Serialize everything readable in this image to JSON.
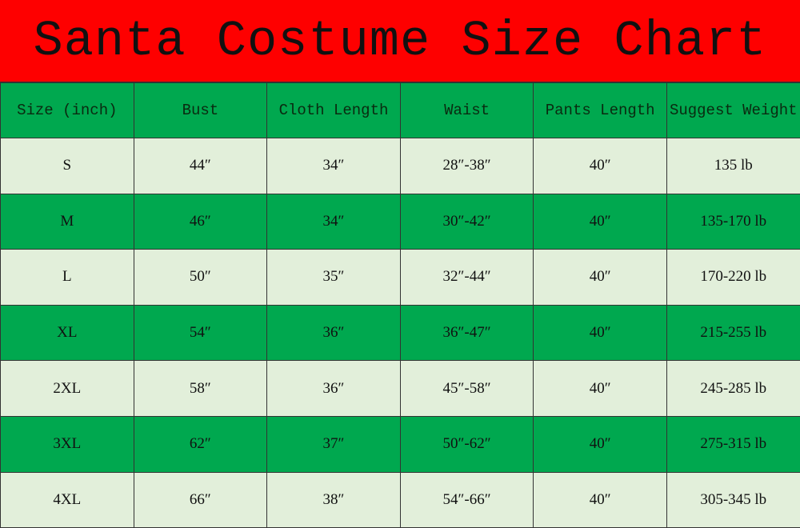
{
  "title": "Santa Costume Size Chart",
  "colors": {
    "title_bg": "#fe0000",
    "green": "#00a84f",
    "light": "#e2efda"
  },
  "table": {
    "headers": [
      "Size (inch)",
      "Bust",
      "Cloth Length",
      "Waist",
      "Pants Length",
      "Suggest Weight"
    ],
    "rows": [
      [
        "S",
        "44″",
        "34″",
        "28″-38″",
        "40″",
        "135 lb"
      ],
      [
        "M",
        "46″",
        "34″",
        "30″-42″",
        "40″",
        "135-170 lb"
      ],
      [
        "L",
        "50″",
        "35″",
        "32″-44″",
        "40″",
        "170-220 lb"
      ],
      [
        "XL",
        "54″",
        "36″",
        "36″-47″",
        "40″",
        "215-255 lb"
      ],
      [
        "2XL",
        "58″",
        "36″",
        "45″-58″",
        "40″",
        "245-285 lb"
      ],
      [
        "3XL",
        "62″",
        "37″",
        "50″-62″",
        "40″",
        "275-315 lb"
      ],
      [
        "4XL",
        "66″",
        "38″",
        "54″-66″",
        "40″",
        "305-345 lb"
      ]
    ]
  }
}
